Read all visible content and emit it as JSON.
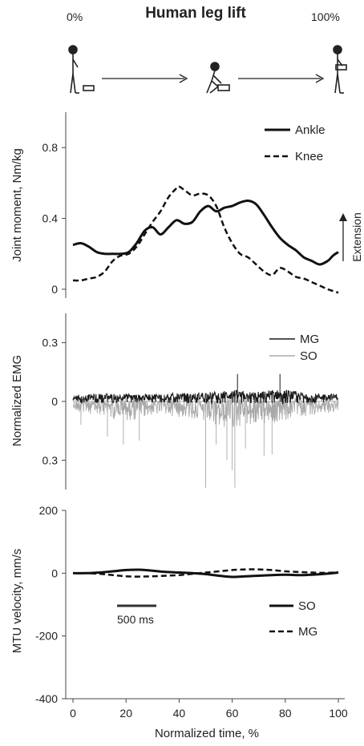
{
  "figure": {
    "title": "Human leg lift",
    "start_label": "0%",
    "end_label": "100%",
    "xlabel": "Normalized time, %",
    "scale_bar_label": "500 ms",
    "extension_label": "Extension"
  },
  "chart_data": [
    {
      "type": "line",
      "ylabel": "Joint moment, Nm/kg",
      "xlim": [
        0,
        100
      ],
      "ylim": [
        -0.05,
        1.0
      ],
      "yticks": [
        "0",
        "0.4",
        "0.8"
      ],
      "ytick_values": [
        0,
        0.4,
        0.8
      ],
      "series": [
        {
          "name": "Ankle",
          "style": "solid",
          "x": [
            0,
            3,
            6,
            9,
            12,
            15,
            18,
            21,
            24,
            27,
            30,
            33,
            36,
            39,
            42,
            45,
            48,
            51,
            54,
            57,
            60,
            63,
            66,
            69,
            72,
            75,
            78,
            81,
            84,
            87,
            90,
            93,
            96,
            98,
            100
          ],
          "y": [
            0.25,
            0.26,
            0.24,
            0.21,
            0.2,
            0.2,
            0.2,
            0.21,
            0.26,
            0.33,
            0.35,
            0.31,
            0.35,
            0.39,
            0.37,
            0.38,
            0.44,
            0.47,
            0.44,
            0.46,
            0.47,
            0.49,
            0.5,
            0.48,
            0.42,
            0.35,
            0.29,
            0.25,
            0.22,
            0.18,
            0.16,
            0.14,
            0.16,
            0.19,
            0.21
          ]
        },
        {
          "name": "Knee",
          "style": "dashed",
          "x": [
            0,
            3,
            6,
            9,
            12,
            15,
            18,
            21,
            24,
            27,
            30,
            33,
            36,
            39,
            40,
            42,
            45,
            48,
            51,
            54,
            57,
            60,
            63,
            66,
            69,
            72,
            75,
            78,
            81,
            84,
            87,
            90,
            93,
            96,
            98,
            100
          ],
          "y": [
            0.05,
            0.05,
            0.06,
            0.07,
            0.1,
            0.16,
            0.19,
            0.2,
            0.24,
            0.31,
            0.38,
            0.44,
            0.52,
            0.57,
            0.58,
            0.56,
            0.53,
            0.54,
            0.53,
            0.47,
            0.35,
            0.26,
            0.2,
            0.18,
            0.14,
            0.1,
            0.08,
            0.12,
            0.1,
            0.07,
            0.06,
            0.04,
            0.02,
            0.0,
            -0.01,
            -0.02
          ]
        }
      ],
      "legend_position": "top-right"
    },
    {
      "type": "line",
      "ylabel": "Normalized EMG",
      "xlim": [
        0,
        100
      ],
      "ylim": [
        -0.45,
        0.45
      ],
      "yticks": [
        "0.3",
        "0",
        "0.3"
      ],
      "ytick_values": [
        0.3,
        0,
        -0.3
      ],
      "series": [
        {
          "name": "MG",
          "color": "#1a1a1a",
          "polarity": 1,
          "x": [
            0,
            5,
            10,
            15,
            20,
            25,
            30,
            35,
            40,
            45,
            50,
            55,
            60,
            65,
            70,
            75,
            80,
            85,
            90,
            95,
            100
          ],
          "y": [
            0.03,
            0.035,
            0.04,
            0.04,
            0.04,
            0.035,
            0.04,
            0.04,
            0.045,
            0.04,
            0.05,
            0.05,
            0.06,
            0.05,
            0.05,
            0.06,
            0.06,
            0.05,
            0.04,
            0.04,
            0.04
          ]
        },
        {
          "name": "SO",
          "color": "#a8a8a8",
          "polarity": -1,
          "x": [
            0,
            5,
            10,
            15,
            20,
            25,
            30,
            35,
            40,
            45,
            50,
            55,
            60,
            65,
            70,
            75,
            80,
            85,
            90,
            95,
            100
          ],
          "y": [
            0.05,
            0.06,
            0.07,
            0.09,
            0.1,
            0.09,
            0.07,
            0.07,
            0.08,
            0.09,
            0.12,
            0.14,
            0.14,
            0.13,
            0.12,
            0.12,
            0.1,
            0.08,
            0.07,
            0.06,
            0.06
          ]
        }
      ],
      "peaks": [
        [
          50,
          -0.44
        ],
        [
          61,
          -0.44
        ],
        [
          60,
          -0.35
        ],
        [
          58,
          -0.3
        ],
        [
          65,
          -0.24
        ],
        [
          72,
          -0.28
        ],
        [
          54,
          -0.22
        ],
        [
          19,
          -0.22
        ],
        [
          25,
          -0.2
        ],
        [
          13,
          -0.18
        ],
        [
          3,
          -0.12
        ],
        [
          62,
          0.14
        ],
        [
          78,
          0.14
        ],
        [
          75,
          -0.27
        ]
      ],
      "legend_position": "top-right"
    },
    {
      "type": "line",
      "ylabel": "MTU velocity, mm/s",
      "xlabel": "Normalized time, %",
      "xlim": [
        0,
        100
      ],
      "ylim": [
        -400,
        200
      ],
      "xticks": [
        "0",
        "20",
        "40",
        "60",
        "80",
        "100"
      ],
      "xtick_values": [
        0,
        20,
        40,
        60,
        80,
        100
      ],
      "yticks": [
        "200",
        "0",
        "-200",
        "-400"
      ],
      "ytick_values": [
        200,
        0,
        -200,
        -400
      ],
      "series": [
        {
          "name": "SO",
          "style": "solid",
          "x": [
            0,
            5,
            10,
            15,
            20,
            25,
            30,
            35,
            40,
            45,
            50,
            55,
            60,
            65,
            70,
            75,
            80,
            85,
            90,
            95,
            100
          ],
          "y": [
            0,
            0,
            2,
            6,
            10,
            11,
            8,
            4,
            2,
            0,
            -3,
            -8,
            -12,
            -10,
            -8,
            -6,
            -5,
            -6,
            -5,
            -2,
            2
          ]
        },
        {
          "name": "MG",
          "style": "dashed",
          "x": [
            0,
            5,
            10,
            15,
            20,
            25,
            30,
            35,
            40,
            45,
            50,
            55,
            60,
            65,
            70,
            75,
            80,
            85,
            90,
            95,
            100
          ],
          "y": [
            0,
            0,
            -2,
            -6,
            -10,
            -11,
            -10,
            -8,
            -6,
            -2,
            2,
            6,
            10,
            12,
            12,
            10,
            6,
            4,
            2,
            1,
            3
          ]
        }
      ],
      "legend_position": "lower-right"
    }
  ]
}
